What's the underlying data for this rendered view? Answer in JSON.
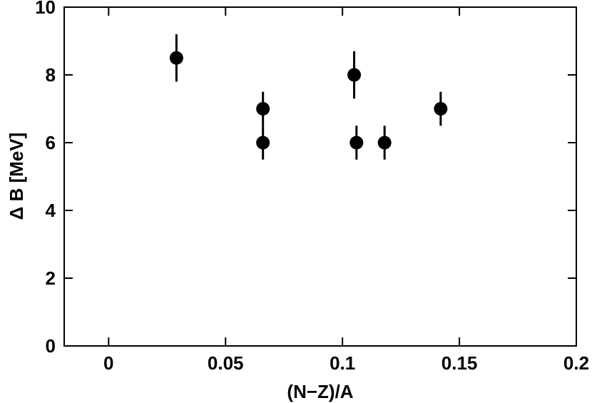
{
  "chart_data": {
    "type": "scatter",
    "title": "",
    "xlabel": "(N−Z)/A",
    "ylabel": "Δ B [MeV]",
    "xlim": [
      -0.019,
      0.2
    ],
    "ylim": [
      0,
      10
    ],
    "x_ticks": [
      0,
      0.05,
      0.1,
      0.15,
      0.2
    ],
    "x_tick_labels": [
      "0",
      "0.05",
      "0.1",
      "0.15",
      "0.2"
    ],
    "y_ticks": [
      0,
      2,
      4,
      6,
      8,
      10
    ],
    "y_tick_labels": [
      "0",
      "2",
      "4",
      "6",
      "8",
      "10"
    ],
    "grid": false,
    "legend": "none",
    "marker_color": "#000000",
    "points": [
      {
        "x": 0.029,
        "y": 8.5,
        "err": 0.7
      },
      {
        "x": 0.066,
        "y": 7.0,
        "err": 0.5
      },
      {
        "x": 0.066,
        "y": 6.0,
        "err": 0.5
      },
      {
        "x": 0.105,
        "y": 8.0,
        "err": 0.7
      },
      {
        "x": 0.106,
        "y": 6.0,
        "err": 0.5
      },
      {
        "x": 0.118,
        "y": 6.0,
        "err": 0.5
      },
      {
        "x": 0.142,
        "y": 7.0,
        "err": 0.5
      }
    ]
  }
}
